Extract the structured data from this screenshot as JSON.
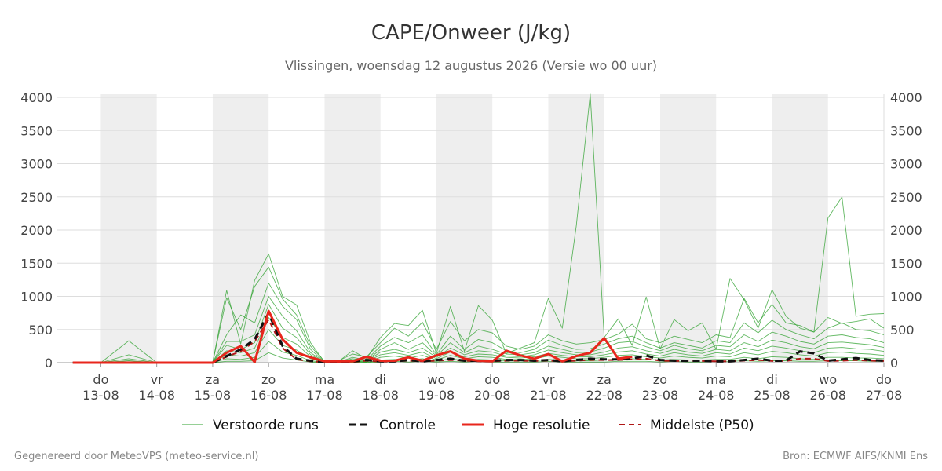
{
  "chart_data": {
    "type": "line",
    "title": "CAPE/Onweer (J/kg)",
    "subtitle": "Vlissingen, woensdag 12 augustus 2026 (Versie wo 00 uur)",
    "ylim": [
      0,
      4000
    ],
    "yticks": [
      0,
      500,
      1000,
      1500,
      2000,
      2500,
      3000,
      3500,
      4000
    ],
    "xlim": [
      "2026-08-12T05:00",
      "2026-08-27T00:00"
    ],
    "xticks": [
      {
        "date": "2026-08-13",
        "day": "do",
        "label": "13-08"
      },
      {
        "date": "2026-08-14",
        "day": "vr",
        "label": "14-08"
      },
      {
        "date": "2026-08-15",
        "day": "za",
        "label": "15-08"
      },
      {
        "date": "2026-08-16",
        "day": "zo",
        "label": "16-08"
      },
      {
        "date": "2026-08-17",
        "day": "ma",
        "label": "17-08"
      },
      {
        "date": "2026-08-18",
        "day": "di",
        "label": "18-08"
      },
      {
        "date": "2026-08-19",
        "day": "wo",
        "label": "19-08"
      },
      {
        "date": "2026-08-20",
        "day": "do",
        "label": "20-08"
      },
      {
        "date": "2026-08-21",
        "day": "vr",
        "label": "21-08"
      },
      {
        "date": "2026-08-22",
        "day": "za",
        "label": "22-08"
      },
      {
        "date": "2026-08-23",
        "day": "zo",
        "label": "23-08"
      },
      {
        "date": "2026-08-24",
        "day": "ma",
        "label": "24-08"
      },
      {
        "date": "2026-08-25",
        "day": "di",
        "label": "25-08"
      },
      {
        "date": "2026-08-26",
        "day": "wo",
        "label": "26-08"
      },
      {
        "date": "2026-08-27",
        "day": "do",
        "label": "27-08"
      }
    ],
    "weekend_bands": [
      [
        "2026-08-13",
        "2026-08-14"
      ],
      [
        "2026-08-15",
        "2026-08-16"
      ],
      [
        "2026-08-17",
        "2026-08-18"
      ],
      [
        "2026-08-19",
        "2026-08-20"
      ],
      [
        "2026-08-21",
        "2026-08-22"
      ],
      [
        "2026-08-23",
        "2026-08-24"
      ],
      [
        "2026-08-25",
        "2026-08-26"
      ]
    ],
    "x": [
      "2026-08-12T12:00",
      "2026-08-13T00:00",
      "2026-08-13T12:00",
      "2026-08-14T00:00",
      "2026-08-14T12:00",
      "2026-08-15T00:00",
      "2026-08-15T06:00",
      "2026-08-15T12:00",
      "2026-08-15T18:00",
      "2026-08-16T00:00",
      "2026-08-16T06:00",
      "2026-08-16T12:00",
      "2026-08-16T18:00",
      "2026-08-17T00:00",
      "2026-08-17T06:00",
      "2026-08-17T12:00",
      "2026-08-17T18:00",
      "2026-08-18T00:00",
      "2026-08-18T06:00",
      "2026-08-18T12:00",
      "2026-08-18T18:00",
      "2026-08-19T00:00",
      "2026-08-19T06:00",
      "2026-08-19T12:00",
      "2026-08-19T18:00",
      "2026-08-20T00:00",
      "2026-08-20T06:00",
      "2026-08-20T12:00",
      "2026-08-20T18:00",
      "2026-08-21T00:00",
      "2026-08-21T06:00",
      "2026-08-21T12:00",
      "2026-08-21T18:00",
      "2026-08-22T00:00",
      "2026-08-22T06:00",
      "2026-08-22T12:00",
      "2026-08-22T18:00",
      "2026-08-23T00:00",
      "2026-08-23T06:00",
      "2026-08-23T12:00",
      "2026-08-23T18:00",
      "2026-08-24T00:00",
      "2026-08-24T06:00",
      "2026-08-24T12:00",
      "2026-08-24T18:00",
      "2026-08-25T00:00",
      "2026-08-25T06:00",
      "2026-08-25T12:00",
      "2026-08-25T18:00",
      "2026-08-26T00:00",
      "2026-08-26T06:00",
      "2026-08-26T12:00",
      "2026-08-26T18:00",
      "2026-08-27T00:00"
    ],
    "series": [
      {
        "name": "Hoge resolutie",
        "style": "hires",
        "color": "#e8261c",
        "values": [
          0,
          0,
          0,
          0,
          0,
          0,
          150,
          250,
          10,
          780,
          350,
          150,
          80,
          20,
          20,
          20,
          90,
          30,
          30,
          80,
          30,
          110,
          170,
          60,
          30,
          20,
          180,
          110,
          60,
          130,
          20,
          100,
          150,
          370,
          60,
          90,
          null,
          null,
          null,
          null,
          null,
          null,
          null,
          null,
          null,
          null,
          null,
          null,
          null,
          null,
          null,
          null,
          null,
          null
        ]
      },
      {
        "name": "Controle",
        "style": "control",
        "color": "#111111",
        "values": [
          0,
          0,
          0,
          0,
          0,
          0,
          100,
          200,
          350,
          750,
          250,
          60,
          30,
          10,
          10,
          20,
          40,
          20,
          20,
          40,
          20,
          40,
          60,
          30,
          30,
          30,
          40,
          40,
          30,
          40,
          20,
          40,
          60,
          50,
          50,
          60,
          110,
          40,
          30,
          30,
          30,
          20,
          20,
          40,
          60,
          30,
          30,
          170,
          140,
          30,
          50,
          70,
          40,
          30
        ]
      },
      {
        "name": "Middelste (P50)",
        "style": "median",
        "color": "#b01818",
        "values": [
          0,
          0,
          0,
          0,
          0,
          0,
          90,
          170,
          320,
          650,
          220,
          50,
          20,
          10,
          10,
          10,
          30,
          15,
          20,
          30,
          20,
          30,
          40,
          30,
          20,
          20,
          30,
          30,
          25,
          30,
          20,
          30,
          40,
          40,
          40,
          50,
          60,
          30,
          25,
          25,
          25,
          20,
          20,
          30,
          40,
          25,
          25,
          60,
          60,
          25,
          30,
          40,
          30,
          25
        ]
      },
      {
        "name": "Verstoorde runs",
        "style": "ensemble",
        "color": "#2ca02c",
        "values": [
          0,
          0,
          330,
          0,
          0,
          0,
          1090,
          280,
          1240,
          1640,
          1000,
          870,
          300,
          10,
          20,
          180,
          60,
          380,
          590,
          560,
          790,
          140,
          850,
          170,
          860,
          640,
          140,
          220,
          300,
          970,
          520,
          2060,
          4050,
          380,
          660,
          260,
          990,
          210,
          650,
          480,
          600,
          200,
          1270,
          950,
          520,
          1100,
          700,
          520,
          460,
          2180,
          2500,
          700,
          730,
          740
        ]
      },
      {
        "name": "Verstoorde runs",
        "style": "ensemble",
        "color": "#2ca02c",
        "values": [
          0,
          0,
          120,
          0,
          0,
          0,
          980,
          500,
          1150,
          1440,
          960,
          720,
          250,
          20,
          30,
          130,
          90,
          300,
          520,
          400,
          610,
          200,
          620,
          330,
          500,
          450,
          250,
          200,
          250,
          420,
          330,
          280,
          300,
          350,
          430,
          580,
          360,
          300,
          400,
          350,
          300,
          420,
          380,
          970,
          600,
          880,
          600,
          560,
          460,
          680,
          590,
          620,
          660,
          520
        ]
      },
      {
        "name": "Verstoorde runs",
        "style": "ensemble",
        "color": "#2ca02c",
        "values": [
          0,
          0,
          60,
          0,
          0,
          0,
          420,
          720,
          600,
          1200,
          850,
          650,
          200,
          10,
          10,
          80,
          40,
          250,
          380,
          300,
          420,
          120,
          400,
          200,
          350,
          300,
          180,
          150,
          200,
          340,
          260,
          200,
          210,
          280,
          360,
          400,
          300,
          220,
          300,
          260,
          220,
          330,
          300,
          600,
          450,
          640,
          500,
          420,
          360,
          520,
          600,
          500,
          480,
          420
        ]
      },
      {
        "name": "Verstoorde runs",
        "style": "ensemble",
        "color": "#2ca02c",
        "values": [
          0,
          0,
          30,
          0,
          0,
          0,
          320,
          320,
          420,
          1000,
          700,
          480,
          150,
          10,
          10,
          60,
          30,
          200,
          300,
          200,
          300,
          100,
          300,
          150,
          250,
          200,
          130,
          120,
          150,
          250,
          200,
          150,
          160,
          220,
          300,
          320,
          240,
          180,
          260,
          210,
          180,
          260,
          240,
          420,
          320,
          460,
          400,
          320,
          280,
          400,
          420,
          380,
          360,
          300
        ]
      },
      {
        "name": "Verstoorde runs",
        "style": "ensemble",
        "color": "#2ca02c",
        "values": [
          0,
          0,
          10,
          0,
          0,
          0,
          260,
          200,
          300,
          880,
          520,
          380,
          120,
          10,
          10,
          40,
          20,
          160,
          200,
          150,
          220,
          80,
          220,
          120,
          180,
          160,
          100,
          90,
          120,
          190,
          150,
          120,
          120,
          160,
          220,
          240,
          180,
          140,
          200,
          160,
          140,
          200,
          180,
          300,
          240,
          340,
          300,
          240,
          210,
          300,
          310,
          290,
          270,
          230
        ]
      },
      {
        "name": "Verstoorde runs",
        "style": "ensemble",
        "color": "#2ca02c",
        "values": [
          0,
          0,
          0,
          0,
          0,
          0,
          180,
          150,
          220,
          680,
          380,
          280,
          90,
          0,
          0,
          30,
          10,
          120,
          150,
          110,
          160,
          60,
          160,
          90,
          130,
          120,
          80,
          70,
          90,
          140,
          110,
          90,
          90,
          120,
          160,
          180,
          130,
          100,
          150,
          120,
          100,
          150,
          130,
          220,
          180,
          250,
          220,
          180,
          150,
          220,
          230,
          210,
          200,
          170
        ]
      },
      {
        "name": "Verstoorde runs",
        "style": "ensemble",
        "color": "#2ca02c",
        "values": [
          0,
          0,
          0,
          0,
          0,
          0,
          120,
          100,
          150,
          500,
          260,
          190,
          60,
          0,
          0,
          20,
          10,
          80,
          100,
          70,
          110,
          40,
          110,
          60,
          90,
          80,
          50,
          50,
          60,
          100,
          80,
          60,
          60,
          80,
          110,
          120,
          90,
          70,
          100,
          80,
          70,
          100,
          90,
          150,
          120,
          170,
          150,
          120,
          100,
          150,
          160,
          140,
          130,
          110
        ]
      },
      {
        "name": "Verstoorde runs",
        "style": "ensemble",
        "color": "#2ca02c",
        "values": [
          0,
          0,
          0,
          0,
          0,
          0,
          60,
          50,
          80,
          320,
          160,
          110,
          30,
          0,
          0,
          10,
          0,
          40,
          50,
          40,
          60,
          20,
          60,
          30,
          50,
          40,
          30,
          30,
          30,
          50,
          40,
          30,
          30,
          40,
          60,
          60,
          50,
          40,
          50,
          40,
          40,
          50,
          50,
          80,
          60,
          90,
          80,
          60,
          50,
          80,
          80,
          70,
          70,
          60
        ]
      },
      {
        "name": "Verstoorde runs",
        "style": "ensemble",
        "color": "#2ca02c",
        "values": [
          0,
          0,
          0,
          0,
          0,
          0,
          20,
          20,
          30,
          150,
          70,
          40,
          10,
          0,
          0,
          0,
          0,
          10,
          20,
          10,
          20,
          10,
          20,
          10,
          20,
          10,
          10,
          10,
          10,
          20,
          10,
          10,
          10,
          10,
          20,
          20,
          20,
          10,
          20,
          10,
          10,
          20,
          20,
          30,
          20,
          30,
          30,
          20,
          20,
          30,
          30,
          30,
          20,
          20
        ]
      }
    ]
  },
  "legend": [
    {
      "label": "Verstoorde runs",
      "style": "ensemble",
      "color": "#2ca02c"
    },
    {
      "label": "Controle",
      "style": "control",
      "color": "#111111"
    },
    {
      "label": "Hoge resolutie",
      "style": "hires",
      "color": "#e8261c"
    },
    {
      "label": "Middelste (P50)",
      "style": "median",
      "color": "#b01818"
    }
  ],
  "footer": {
    "left": "Gegenereerd door MeteoVPS (meteo-service.nl)",
    "right": "Bron: ECMWF AIFS/KNMI Ens"
  },
  "colors": {
    "grid": "#dddddd",
    "band": "#eeeeee",
    "axis": "#999999"
  }
}
